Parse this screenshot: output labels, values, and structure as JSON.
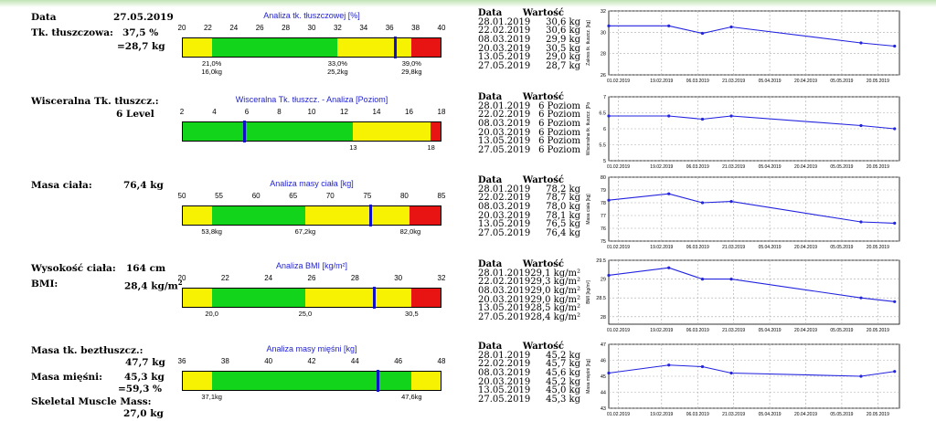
{
  "colors": {
    "red": "#e81313",
    "yellow": "#f7f201",
    "green": "#12d41a",
    "marker": "#1010c8",
    "chart_line": "#2323e0"
  },
  "left": {
    "date_label": "Data",
    "date_value": "27.05.2019",
    "fat_label": "Tk. tłuszczowa:",
    "fat_pct": "37,5 %",
    "fat_kg": "=28,7 kg",
    "visceral_label": "Wisceralna Tk. tłuszcz.:",
    "visceral_value": "6 Level",
    "mass_label": "Masa ciała:",
    "mass_value": "76,4 kg",
    "height_label": "Wysokość ciała:",
    "height_value": "164 cm",
    "bmi_label": "BMI:",
    "bmi_value": "28,4 kg/m",
    "bmi_sup": "2",
    "ffm_label": "Masa tk. beztłuszcz.:",
    "ffm_value": "47,7 kg",
    "muscle_label": "Masa mięśni:",
    "muscle_value": "45,3 kg",
    "muscle_pct": "=59,3 %",
    "skeletal_label": "Skeletal Muscle Mass:",
    "skeletal_value": "27,0 kg"
  },
  "gauges": [
    {
      "title": "Analiza tk. tłuszczowej [%]",
      "ticks": [
        "20",
        "22",
        "24",
        "26",
        "28",
        "30",
        "32",
        "34",
        "36",
        "38",
        "40"
      ],
      "segments": [
        {
          "c": "yellow",
          "to": 0.115
        },
        {
          "c": "green",
          "to": 0.6
        },
        {
          "c": "yellow",
          "to": 0.885
        },
        {
          "c": "red",
          "to": 1
        }
      ],
      "marker": 0.82,
      "under": [
        {
          "x": 0.115,
          "a": "21,0%",
          "b": "16,0kg"
        },
        {
          "x": 0.6,
          "a": "33,0%",
          "b": "25,2kg"
        },
        {
          "x": 0.885,
          "a": "39,0%",
          "b": "29,8kg"
        }
      ]
    },
    {
      "title": "Wisceralna Tk. tłuszcz.  - Analiza [Poziom]",
      "ticks": [
        "2",
        "4",
        "6",
        "8",
        "10",
        "12",
        "14",
        "16",
        "18"
      ],
      "segments": [
        {
          "c": "green",
          "to": 0.66
        },
        {
          "c": "yellow",
          "to": 0.96
        },
        {
          "c": "red",
          "to": 1
        }
      ],
      "marker": 0.24,
      "under": [
        {
          "x": 0.66,
          "a": "13",
          "b": ""
        },
        {
          "x": 0.96,
          "a": "18",
          "b": ""
        }
      ]
    },
    {
      "title": "Analiza masy ciała [kg]",
      "ticks": [
        "50",
        "55",
        "60",
        "65",
        "70",
        "75",
        "80",
        "85"
      ],
      "segments": [
        {
          "c": "yellow",
          "to": 0.115
        },
        {
          "c": "green",
          "to": 0.475
        },
        {
          "c": "yellow",
          "to": 0.88
        },
        {
          "c": "red",
          "to": 1
        }
      ],
      "marker": 0.725,
      "under": [
        {
          "x": 0.115,
          "a": "53,8kg",
          "b": ""
        },
        {
          "x": 0.475,
          "a": "67,2kg",
          "b": ""
        },
        {
          "x": 0.88,
          "a": "82,0kg",
          "b": ""
        }
      ]
    },
    {
      "title": "Analiza BMI [kg/m²]",
      "ticks": [
        "20",
        "22",
        "24",
        "26",
        "28",
        "30",
        "32"
      ],
      "segments": [
        {
          "c": "yellow",
          "to": 0.115
        },
        {
          "c": "green",
          "to": 0.475
        },
        {
          "c": "yellow",
          "to": 0.885
        },
        {
          "c": "red",
          "to": 1
        }
      ],
      "marker": 0.74,
      "under": [
        {
          "x": 0.115,
          "a": "20,0",
          "b": ""
        },
        {
          "x": 0.475,
          "a": "25,0",
          "b": ""
        },
        {
          "x": 0.885,
          "a": "30,5",
          "b": ""
        }
      ]
    },
    {
      "title": "Analiza masy mięśni [kg]",
      "ticks": [
        "36",
        "38",
        "40",
        "42",
        "44",
        "46",
        "48"
      ],
      "segments": [
        {
          "c": "yellow",
          "to": 0.115
        },
        {
          "c": "green",
          "to": 0.885
        },
        {
          "c": "yellow",
          "to": 1
        }
      ],
      "marker": 0.755,
      "under": [
        {
          "x": 0.115,
          "a": "37,1kg",
          "b": ""
        },
        {
          "x": 0.885,
          "a": "47,6kg",
          "b": ""
        }
      ]
    }
  ],
  "history_headers": {
    "date": "Data",
    "value": "Wartość"
  },
  "history": [
    {
      "rows": [
        [
          "28.01.2019",
          "30,6 kg"
        ],
        [
          "22.02.2019",
          "30,6 kg"
        ],
        [
          "08.03.2019",
          "29,9 kg"
        ],
        [
          "20.03.2019",
          "30,5 kg"
        ],
        [
          "13.05.2019",
          "29,0 kg"
        ],
        [
          "27.05.2019",
          "28,7 kg"
        ]
      ]
    },
    {
      "rows": [
        [
          "28.01.2019",
          "6 Poziom"
        ],
        [
          "22.02.2019",
          "6 Poziom"
        ],
        [
          "08.03.2019",
          "6 Poziom"
        ],
        [
          "20.03.2019",
          "6 Poziom"
        ],
        [
          "13.05.2019",
          "6 Poziom"
        ],
        [
          "27.05.2019",
          "6 Poziom"
        ]
      ]
    },
    {
      "rows": [
        [
          "28.01.2019",
          "78,2 kg"
        ],
        [
          "22.02.2019",
          "78,7 kg"
        ],
        [
          "08.03.2019",
          "78,0 kg"
        ],
        [
          "20.03.2019",
          "78,1 kg"
        ],
        [
          "13.05.2019",
          "76,5 kg"
        ],
        [
          "27.05.2019",
          "76,4 kg"
        ]
      ]
    },
    {
      "rows": [
        [
          "28.01.2019",
          "29,1 kg/m²"
        ],
        [
          "22.02.2019",
          "29,3 kg/m²"
        ],
        [
          "08.03.2019",
          "29,0 kg/m²"
        ],
        [
          "20.03.2019",
          "29,0 kg/m²"
        ],
        [
          "13.05.2019",
          "28,5 kg/m²"
        ],
        [
          "27.05.2019",
          "28,4 kg/m²"
        ]
      ]
    },
    {
      "rows": [
        [
          "28.01.2019",
          "45,2 kg"
        ],
        [
          "22.02.2019",
          "45,7 kg"
        ],
        [
          "08.03.2019",
          "45,6 kg"
        ],
        [
          "20.03.2019",
          "45,2 kg"
        ],
        [
          "13.05.2019",
          "45,0 kg"
        ],
        [
          "27.05.2019",
          "45,3 kg"
        ]
      ]
    }
  ],
  "chart_data": [
    {
      "type": "line",
      "ylabel": "Zakres tk. tłuszcz. [kg]",
      "ylim": [
        26,
        32
      ],
      "yticks": [
        26,
        28,
        30,
        32
      ],
      "xticks": [
        "01.02.2019",
        "19.02.2019",
        "06.03.2019",
        "21.03.2019",
        "05.04.2019",
        "20.04.2019",
        "05.05.2019",
        "20.05.2019"
      ],
      "x": [
        "28.01.2019",
        "22.02.2019",
        "08.03.2019",
        "20.03.2019",
        "13.05.2019",
        "27.05.2019"
      ],
      "values": [
        30.6,
        30.6,
        29.9,
        30.5,
        29.0,
        28.7
      ]
    },
    {
      "type": "line",
      "ylabel": "Wisceralna tk. tłuszcz. [Po",
      "ylim": [
        5,
        7
      ],
      "yticks": [
        5,
        5.5,
        6,
        6.5,
        7
      ],
      "ytick_labels": [
        "5",
        "5.5",
        "6",
        "6.5",
        "7"
      ],
      "xticks": [
        "01.02.2019",
        "19.02.2019",
        "06.03.2019",
        "21.03.2019",
        "05.04.2019",
        "20.04.2019",
        "05.05.2019",
        "20.05.2019"
      ],
      "x": [
        "28.01.2019",
        "22.02.2019",
        "08.03.2019",
        "20.03.2019",
        "13.05.2019",
        "27.05.2019"
      ],
      "values": [
        6.4,
        6.4,
        6.3,
        6.4,
        6.1,
        6.0
      ]
    },
    {
      "type": "line",
      "ylabel": "Masa ciała [kg]",
      "ylim": [
        75,
        80
      ],
      "yticks": [
        75,
        76,
        77,
        78,
        79,
        80
      ],
      "xticks": [
        "01.02.2019",
        "19.02.2019",
        "06.03.2019",
        "21.03.2019",
        "05.04.2019",
        "20.04.2019",
        "05.05.2019",
        "20.05.2019"
      ],
      "x": [
        "28.01.2019",
        "22.02.2019",
        "08.03.2019",
        "20.03.2019",
        "13.05.2019",
        "27.05.2019"
      ],
      "values": [
        78.2,
        78.7,
        78.0,
        78.1,
        76.5,
        76.4
      ]
    },
    {
      "type": "line",
      "ylabel": "BMI [kg/m²]",
      "ylim": [
        27.8,
        29.5
      ],
      "yticks": [
        28,
        28.5,
        29,
        29.5
      ],
      "ytick_labels": [
        "28",
        "28.5",
        "29",
        "29.5"
      ],
      "xticks": [
        "01.02.2019",
        "19.02.2019",
        "06.03.2019",
        "21.03.2019",
        "05.04.2019",
        "20.04.2019",
        "05.05.2019",
        "20.05.2019"
      ],
      "x": [
        "28.01.2019",
        "22.02.2019",
        "08.03.2019",
        "20.03.2019",
        "13.05.2019",
        "27.05.2019"
      ],
      "values": [
        29.1,
        29.3,
        29.0,
        29.0,
        28.5,
        28.4
      ]
    },
    {
      "type": "line",
      "ylabel": "Masa mięśni [kg]",
      "ylim": [
        43,
        47
      ],
      "yticks": [
        43,
        44,
        45,
        46,
        47
      ],
      "xticks": [
        "01.02.2019",
        "19.02.2019",
        "06.03.2019",
        "21.03.2019",
        "05.04.2019",
        "20.04.2019",
        "05.05.2019",
        "20.05.2019"
      ],
      "x": [
        "28.01.2019",
        "22.02.2019",
        "08.03.2019",
        "20.03.2019",
        "13.05.2019",
        "27.05.2019"
      ],
      "values": [
        45.2,
        45.7,
        45.6,
        45.2,
        45.0,
        45.3
      ]
    }
  ]
}
